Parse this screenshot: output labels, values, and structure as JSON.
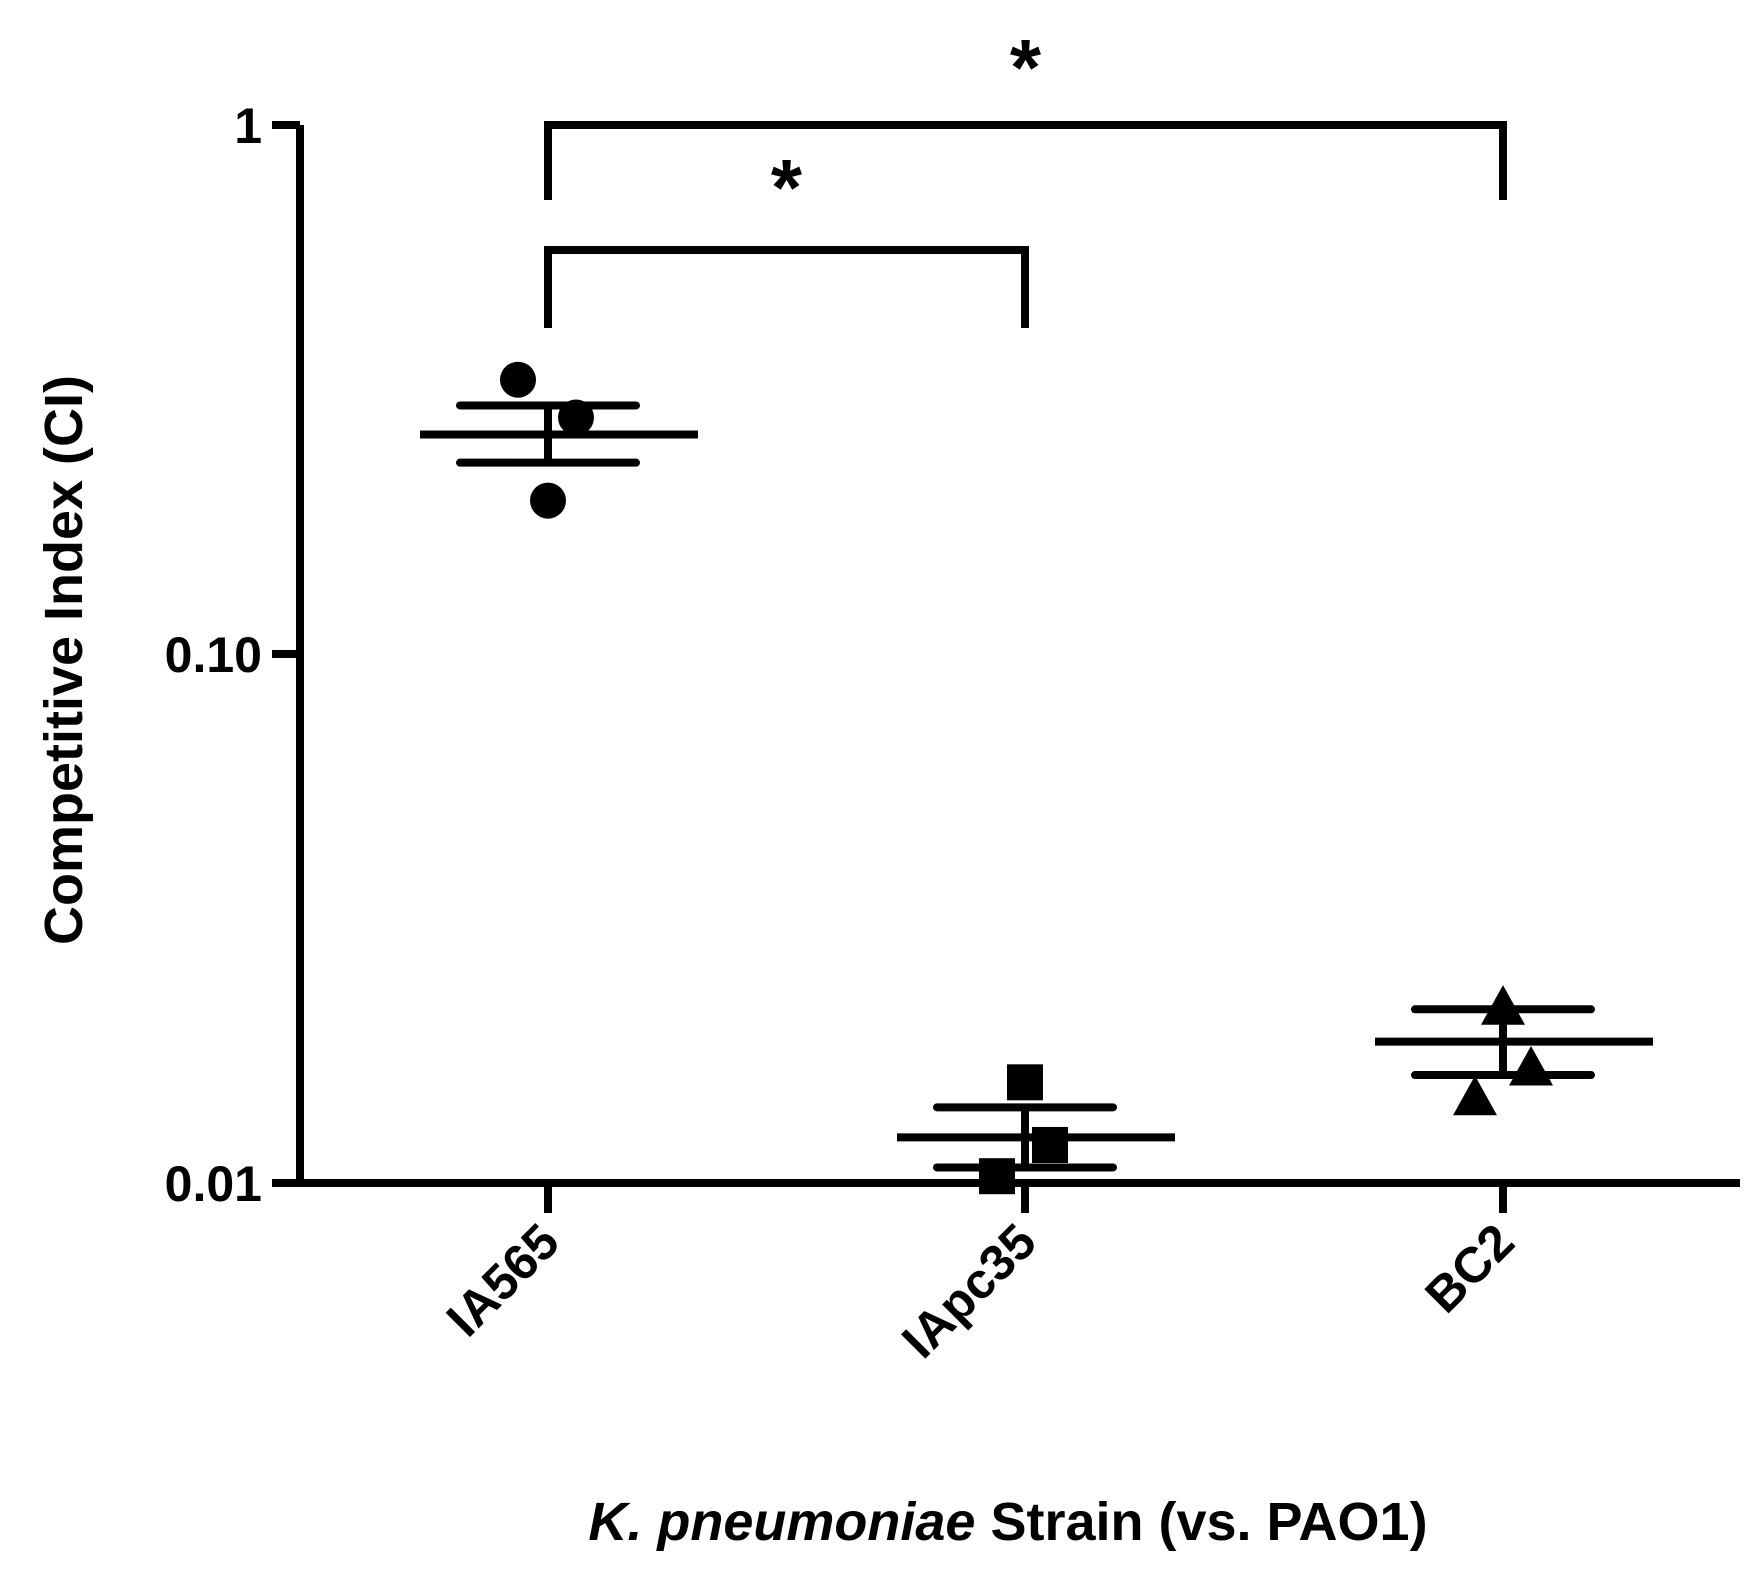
{
  "chart_data": {
    "type": "scatter",
    "title": "",
    "ylabel": "Competitive Index (CI)",
    "xlabel_italic": "K. pneumoniae",
    "xlabel_rest": " Strain (vs. PAO1)",
    "y_scale": "log",
    "ylim": [
      0.01,
      1
    ],
    "y_ticks": [
      {
        "value": 0.01,
        "label": "0.01"
      },
      {
        "value": 0.1,
        "label": "0.10"
      },
      {
        "value": 1,
        "label": "1"
      }
    ],
    "categories": [
      "IA565",
      "IApc35",
      "BC2"
    ],
    "groups": [
      {
        "category": "IA565",
        "marker": "circle",
        "points": [
          0.33,
          0.28,
          0.195
        ],
        "mean": 0.26,
        "error_upper": 0.295,
        "error_lower": 0.23
      },
      {
        "category": "IApc35",
        "marker": "square",
        "points": [
          0.0155,
          0.0118,
          0.0103
        ],
        "mean": 0.0122,
        "error_upper": 0.0139,
        "error_lower": 0.0107
      },
      {
        "category": "BC2",
        "marker": "triangle",
        "points": [
          0.0215,
          0.0165,
          0.0145
        ],
        "mean": 0.0185,
        "error_upper": 0.0213,
        "error_lower": 0.016
      }
    ],
    "significance": [
      {
        "from": "IA565",
        "to": "IApc35",
        "label": "*"
      },
      {
        "from": "IA565",
        "to": "BC2",
        "label": "*"
      }
    ],
    "grid": false,
    "legend": "none",
    "color": "#000000"
  }
}
